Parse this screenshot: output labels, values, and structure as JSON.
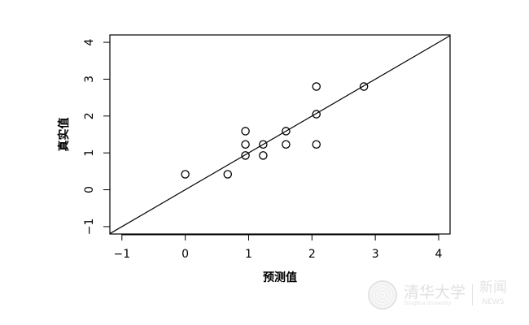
{
  "chart_data": {
    "type": "scatter",
    "title": "",
    "xlabel": "预测值",
    "ylabel": "真实值",
    "xlim": [
      -1.19,
      4.18
    ],
    "ylim": [
      -1.2,
      4.2
    ],
    "xticks": [
      -1,
      0,
      1,
      2,
      3,
      4
    ],
    "yticks": [
      -1,
      0,
      1,
      2,
      3,
      4
    ],
    "grid": false,
    "marker": "open-circle",
    "points": [
      {
        "x": 0.0,
        "y": 0.42
      },
      {
        "x": 0.67,
        "y": 0.42
      },
      {
        "x": 0.95,
        "y": 1.59
      },
      {
        "x": 0.95,
        "y": 1.23
      },
      {
        "x": 0.95,
        "y": 0.93
      },
      {
        "x": 1.23,
        "y": 1.23
      },
      {
        "x": 1.23,
        "y": 0.93
      },
      {
        "x": 1.59,
        "y": 1.59
      },
      {
        "x": 1.59,
        "y": 1.23
      },
      {
        "x": 2.07,
        "y": 2.8
      },
      {
        "x": 2.07,
        "y": 2.05
      },
      {
        "x": 2.07,
        "y": 1.23
      },
      {
        "x": 2.82,
        "y": 2.8
      }
    ],
    "reference_line": {
      "type": "y=x",
      "slope": 1,
      "intercept": 0
    }
  },
  "watermark": {
    "name": "清华大学",
    "subtitle": "Tsinghua University",
    "news_cn": "新闻",
    "news_en": "NEWS"
  }
}
